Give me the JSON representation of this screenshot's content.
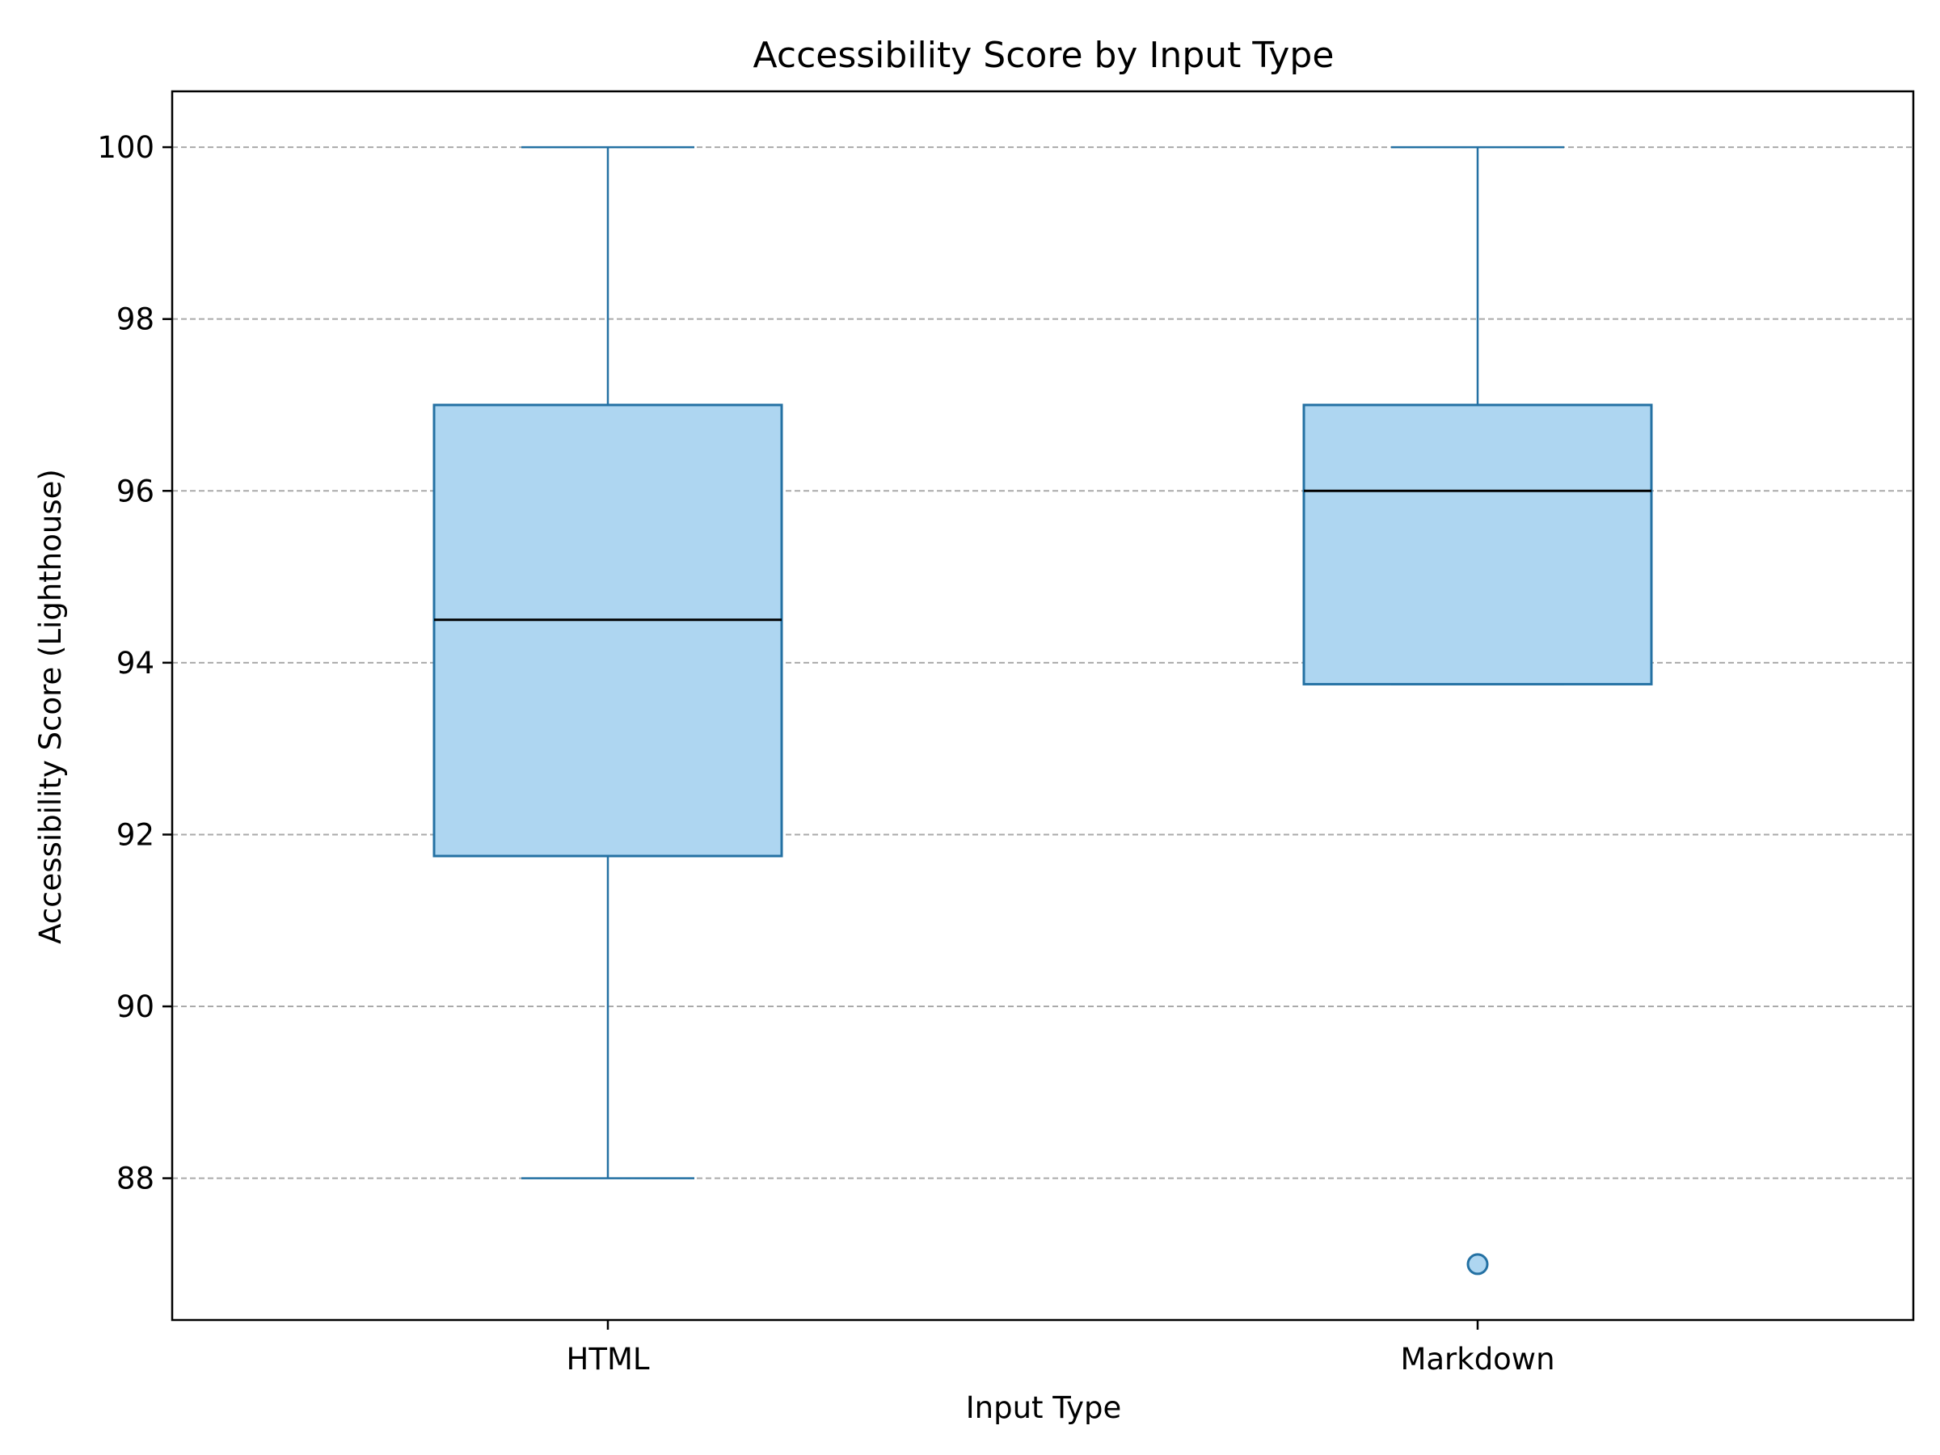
{
  "chart_data": {
    "type": "box",
    "title": "Accessibility Score by Input Type",
    "xlabel": "Input Type",
    "ylabel": "Accessibility Score (Lighthouse)",
    "ylim": [
      86.35,
      100.65
    ],
    "yticks": [
      88,
      90,
      92,
      94,
      96,
      98,
      100
    ],
    "grid": "y-dashed",
    "categories": [
      "HTML",
      "Markdown"
    ],
    "boxes": [
      {
        "category": "HTML",
        "whisker_low": 88,
        "q1": 91.75,
        "median": 94.5,
        "q3": 97,
        "whisker_high": 100,
        "outliers": []
      },
      {
        "category": "Markdown",
        "whisker_low": 93.75,
        "q1": 93.75,
        "median": 96,
        "q3": 97,
        "whisker_high": 100,
        "outliers": [
          87
        ]
      }
    ],
    "colors": {
      "box_fill": "#aed6f1",
      "box_edge": "#2471a3",
      "median": "#000000",
      "grid": "#aaaaaa",
      "outlier_fill": "#aed6f1"
    }
  }
}
